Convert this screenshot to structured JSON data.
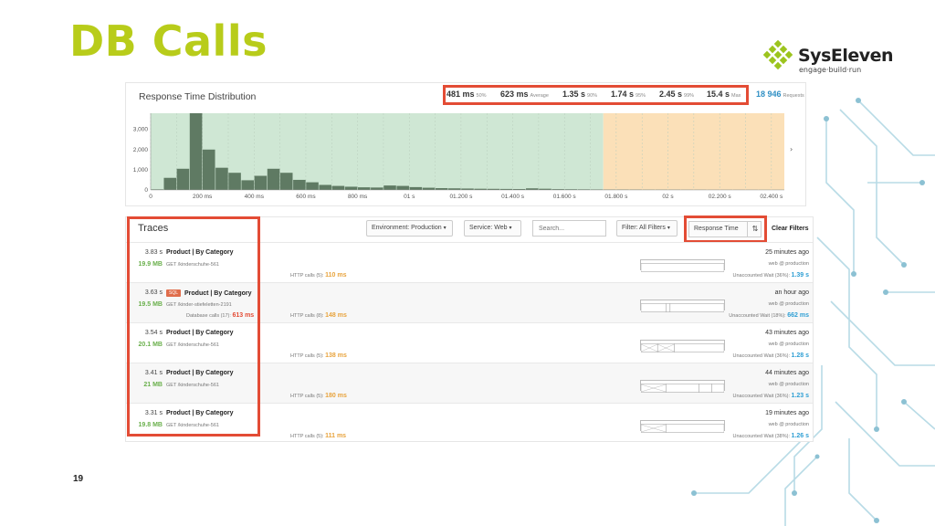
{
  "slide": {
    "title": "DB Calls",
    "page_number": "19"
  },
  "logo": {
    "name": "SysEleven",
    "tagline": "engage·build·run"
  },
  "distribution": {
    "title": "Response Time Distribution",
    "stats": [
      {
        "value": "481 ms",
        "label": "50%"
      },
      {
        "value": "623 ms",
        "label": "Average"
      },
      {
        "value": "1.35 s",
        "label": "90%"
      },
      {
        "value": "1.74 s",
        "label": "95%"
      },
      {
        "value": "2.45 s",
        "label": "99%"
      },
      {
        "value": "15.4 s",
        "label": "Max"
      }
    ],
    "requests": {
      "value": "18 946",
      "label": "Requests"
    }
  },
  "chart_data": {
    "type": "bar",
    "title": "",
    "y_ticks": [
      "0",
      "1,000",
      "2,000",
      "3,000"
    ],
    "x_ticks": [
      "0",
      "200 ms",
      "400 ms",
      "600 ms",
      "800 ms",
      "01 s",
      "01.200 s",
      "01.400 s",
      "01.600 s",
      "01.800 s",
      "02 s",
      "02.200 s",
      "02.400 s"
    ],
    "ylim": [
      0,
      3800
    ],
    "xlim": [
      0,
      2450
    ],
    "bin_width_ms": 50,
    "values": [
      30,
      600,
      1050,
      3800,
      2000,
      1100,
      850,
      480,
      700,
      1050,
      850,
      500,
      380,
      250,
      200,
      160,
      130,
      120,
      220,
      200,
      140,
      110,
      90,
      80,
      70,
      60,
      55,
      50,
      45,
      80,
      60,
      40,
      35,
      30,
      25,
      20,
      20,
      18,
      15,
      15,
      14,
      12,
      12,
      10,
      10,
      10,
      9,
      8,
      8
    ],
    "zones": [
      {
        "from": 0,
        "to": 1750,
        "color": "#cfe7d4"
      },
      {
        "from": 1750,
        "to": 2450,
        "color": "#fbe0b8"
      }
    ],
    "bar_color": "#5f7a63",
    "grid": true
  },
  "traces": {
    "title": "Traces",
    "filters": {
      "environment": "Environment: Production",
      "service": "Service: Web",
      "search_placeholder": "Search...",
      "filter": "Filter: All Filters",
      "sort": "Response Time",
      "sort_icon": "sort-descending-icon",
      "clear": "Clear Filters"
    },
    "rows": [
      {
        "duration": "3.83 s",
        "sql": false,
        "name": "Product | By Category",
        "memory": "19.9 MB",
        "url": "GET /kinderschuhe-561",
        "db_calls": "",
        "db_time": "",
        "http_calls": "HTTP calls (5):",
        "http_time": "110 ms",
        "when": "25 minutes ago",
        "host": "web @ production",
        "wait": "Unaccounted Wait (36%):",
        "wait_time": "1.39 s"
      },
      {
        "duration": "3.63 s",
        "sql": true,
        "sql_label": "SQL",
        "name": "Product | By Category",
        "memory": "19.5 MB",
        "url": "GET /kinder-stiefeletten-2191",
        "db_calls": "Database calls (17):",
        "db_time": "613 ms",
        "http_calls": "HTTP calls (8):",
        "http_time": "148 ms",
        "when": "an hour ago",
        "host": "web @ production",
        "wait": "Unaccounted Wait (18%):",
        "wait_time": "662 ms"
      },
      {
        "duration": "3.54 s",
        "sql": false,
        "name": "Product | By Category",
        "memory": "20.1 MB",
        "url": "GET /kinderschuhe-561",
        "db_calls": "",
        "db_time": "",
        "http_calls": "HTTP calls (5):",
        "http_time": "138 ms",
        "when": "43 minutes ago",
        "host": "web @ production",
        "wait": "Unaccounted Wait (36%):",
        "wait_time": "1.28 s"
      },
      {
        "duration": "3.41 s",
        "sql": false,
        "name": "Product | By Category",
        "memory": "21 MB",
        "url": "GET /kinderschuhe-561",
        "db_calls": "",
        "db_time": "",
        "http_calls": "HTTP calls (5):",
        "http_time": "180 ms",
        "when": "44 minutes ago",
        "host": "web @ production",
        "wait": "Unaccounted Wait (36%):",
        "wait_time": "1.23 s"
      },
      {
        "duration": "3.31 s",
        "sql": false,
        "name": "Product | By Category",
        "memory": "19.8 MB",
        "url": "GET /kinderschuhe-561",
        "db_calls": "",
        "db_time": "",
        "http_calls": "HTTP calls (5):",
        "http_time": "111 ms",
        "when": "19 minutes ago",
        "host": "web @ production",
        "wait": "Unaccounted Wait (38%):",
        "wait_time": "1.26 s"
      }
    ]
  },
  "colors": {
    "title": "#b8cc1a",
    "highlight": "#e34c35",
    "memory": "#6ab04c",
    "http": "#e8a33c",
    "wait": "#2f9fd4"
  }
}
